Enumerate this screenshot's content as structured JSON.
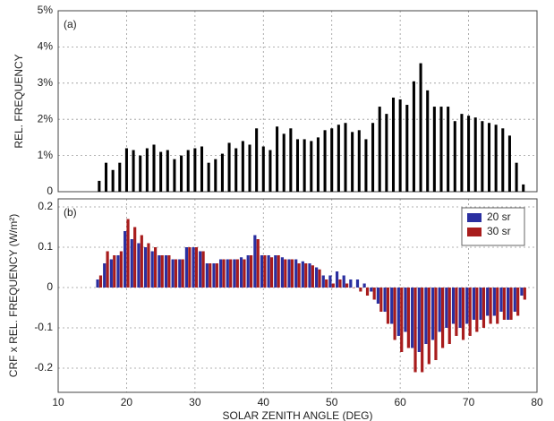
{
  "chart_data": [
    {
      "type": "bar",
      "label": "(a)",
      "ylabel": "REL. FREQUENCY",
      "color": "#000000",
      "grid": true,
      "xlim": [
        10,
        80
      ],
      "ylim": [
        0,
        5
      ],
      "yticks": [
        0,
        {
          "value": 1,
          "label": "1%"
        },
        {
          "value": 2,
          "label": "2%"
        },
        {
          "value": 3,
          "label": "3%"
        },
        {
          "value": 4,
          "label": "4%"
        },
        {
          "value": 5,
          "label": "5%"
        }
      ],
      "x": [
        16,
        17,
        18,
        19,
        20,
        21,
        22,
        23,
        24,
        25,
        26,
        27,
        28,
        29,
        30,
        31,
        32,
        33,
        34,
        35,
        36,
        37,
        38,
        39,
        40,
        41,
        42,
        43,
        44,
        45,
        46,
        47,
        48,
        49,
        50,
        51,
        52,
        53,
        54,
        55,
        56,
        57,
        58,
        59,
        60,
        61,
        62,
        63,
        64,
        65,
        66,
        67,
        68,
        69,
        70,
        71,
        72,
        73,
        74,
        75,
        76,
        77,
        78
      ],
      "values": [
        0.3,
        0.8,
        0.6,
        0.8,
        1.2,
        1.15,
        1.0,
        1.2,
        1.3,
        1.1,
        1.15,
        0.9,
        1.0,
        1.15,
        1.2,
        1.25,
        0.8,
        0.9,
        1.05,
        1.35,
        1.2,
        1.4,
        1.3,
        1.75,
        1.25,
        1.15,
        1.8,
        1.6,
        1.75,
        1.45,
        1.45,
        1.4,
        1.5,
        1.7,
        1.75,
        1.85,
        1.9,
        1.65,
        1.7,
        1.45,
        1.9,
        2.35,
        2.15,
        2.6,
        2.55,
        2.4,
        3.05,
        3.55,
        2.8,
        2.35,
        2.35,
        2.35,
        1.95,
        2.15,
        2.1,
        2.05,
        1.95,
        1.9,
        1.85,
        1.75,
        1.55,
        0.8,
        0.2
      ]
    },
    {
      "type": "bar",
      "label": "(b)",
      "ylabel": "CRF x REL. FREQUENCY (W/m²)",
      "xlabel": "SOLAR ZENITH ANGLE (DEG)",
      "grid": true,
      "legend": "upper right",
      "xlim": [
        10,
        80
      ],
      "ylim": [
        -0.26,
        0.22
      ],
      "xticks": [
        10,
        20,
        30,
        40,
        50,
        60,
        70,
        80
      ],
      "yticks": [
        -0.2,
        -0.1,
        0,
        0.1,
        0.2
      ],
      "x": [
        16,
        17,
        18,
        19,
        20,
        21,
        22,
        23,
        24,
        25,
        26,
        27,
        28,
        29,
        30,
        31,
        32,
        33,
        34,
        35,
        36,
        37,
        38,
        39,
        40,
        41,
        42,
        43,
        44,
        45,
        46,
        47,
        48,
        49,
        50,
        51,
        52,
        53,
        54,
        55,
        56,
        57,
        58,
        59,
        60,
        61,
        62,
        63,
        64,
        65,
        66,
        67,
        68,
        69,
        70,
        71,
        72,
        73,
        74,
        75,
        76,
        77,
        78
      ],
      "series": [
        {
          "name": "20 sr",
          "color": "#2a2fa0",
          "values": [
            0.02,
            0.06,
            0.07,
            0.08,
            0.14,
            0.12,
            0.11,
            0.1,
            0.09,
            0.08,
            0.08,
            0.07,
            0.07,
            0.1,
            0.1,
            0.09,
            0.06,
            0.06,
            0.07,
            0.07,
            0.07,
            0.075,
            0.08,
            0.13,
            0.08,
            0.08,
            0.08,
            0.075,
            0.07,
            0.07,
            0.065,
            0.06,
            0.05,
            0.03,
            0.03,
            0.04,
            0.03,
            0.02,
            0.02,
            0.01,
            -0.01,
            -0.04,
            -0.06,
            -0.09,
            -0.12,
            -0.11,
            -0.15,
            -0.16,
            -0.14,
            -0.13,
            -0.11,
            -0.1,
            -0.09,
            -0.1,
            -0.09,
            -0.08,
            -0.08,
            -0.07,
            -0.07,
            -0.06,
            -0.08,
            -0.06,
            -0.02
          ]
        },
        {
          "name": "30 sr",
          "color": "#a81c1c",
          "values": [
            0.03,
            0.09,
            0.08,
            0.09,
            0.17,
            0.15,
            0.13,
            0.11,
            0.1,
            0.08,
            0.08,
            0.07,
            0.07,
            0.1,
            0.1,
            0.09,
            0.06,
            0.06,
            0.07,
            0.07,
            0.07,
            0.07,
            0.08,
            0.12,
            0.08,
            0.075,
            0.08,
            0.07,
            0.07,
            0.06,
            0.06,
            0.055,
            0.045,
            0.02,
            0.01,
            0.02,
            0.01,
            0.0,
            -0.01,
            -0.02,
            -0.03,
            -0.06,
            -0.09,
            -0.13,
            -0.16,
            -0.15,
            -0.21,
            -0.21,
            -0.19,
            -0.18,
            -0.15,
            -0.14,
            -0.12,
            -0.13,
            -0.12,
            -0.11,
            -0.1,
            -0.09,
            -0.09,
            -0.08,
            -0.08,
            -0.07,
            -0.03
          ]
        }
      ]
    }
  ]
}
